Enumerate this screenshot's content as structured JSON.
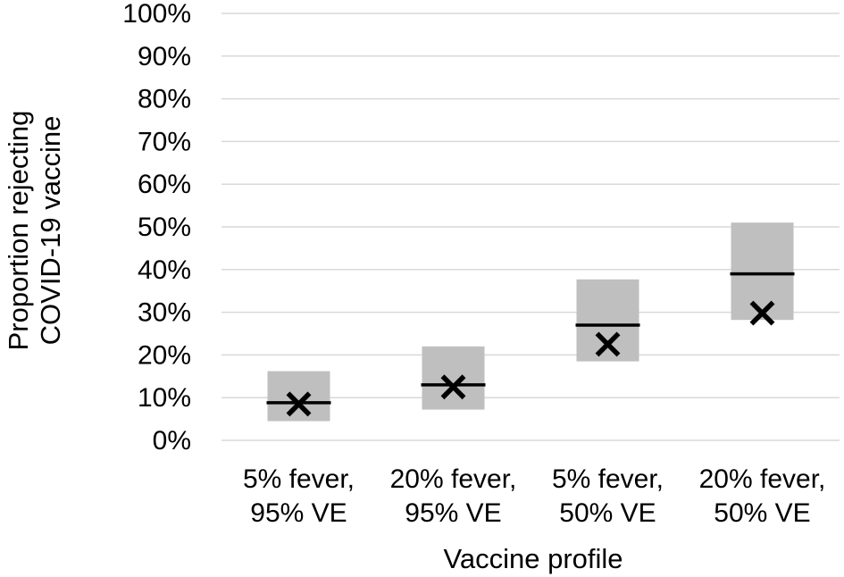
{
  "chart_data": {
    "type": "box",
    "title": "",
    "xlabel": "Vaccine profile",
    "ylabel": [
      "Proportion rejecting",
      "COVID-19 vaccine"
    ],
    "ylim": [
      0,
      100
    ],
    "y_ticks": [
      "0%",
      "10%",
      "20%",
      "30%",
      "40%",
      "50%",
      "60%",
      "70%",
      "80%",
      "90%",
      "100%"
    ],
    "grid": true,
    "legend": "none",
    "categories": [
      [
        "5% fever,",
        "95% VE"
      ],
      [
        "20% fever,",
        "95% VE"
      ],
      [
        "5% fever,",
        "50% VE"
      ],
      [
        "20% fever,",
        "50% VE"
      ]
    ],
    "series": [
      {
        "name": "",
        "kind": "range_low",
        "values": [
          4.5,
          7.2,
          18.5,
          28.2
        ]
      },
      {
        "name": "",
        "kind": "range_high",
        "values": [
          16.2,
          22.0,
          37.7,
          51.0
        ]
      },
      {
        "name": "",
        "kind": "median_line",
        "values": [
          8.8,
          13.0,
          27.0,
          39.0
        ]
      },
      {
        "name": "",
        "kind": "x_marker",
        "values": [
          8.5,
          12.5,
          22.5,
          29.8
        ]
      }
    ],
    "colors": {
      "box": "#bfbfbf",
      "line": "#000000",
      "marker": "#000000",
      "grid": "#d9d9d9"
    }
  }
}
